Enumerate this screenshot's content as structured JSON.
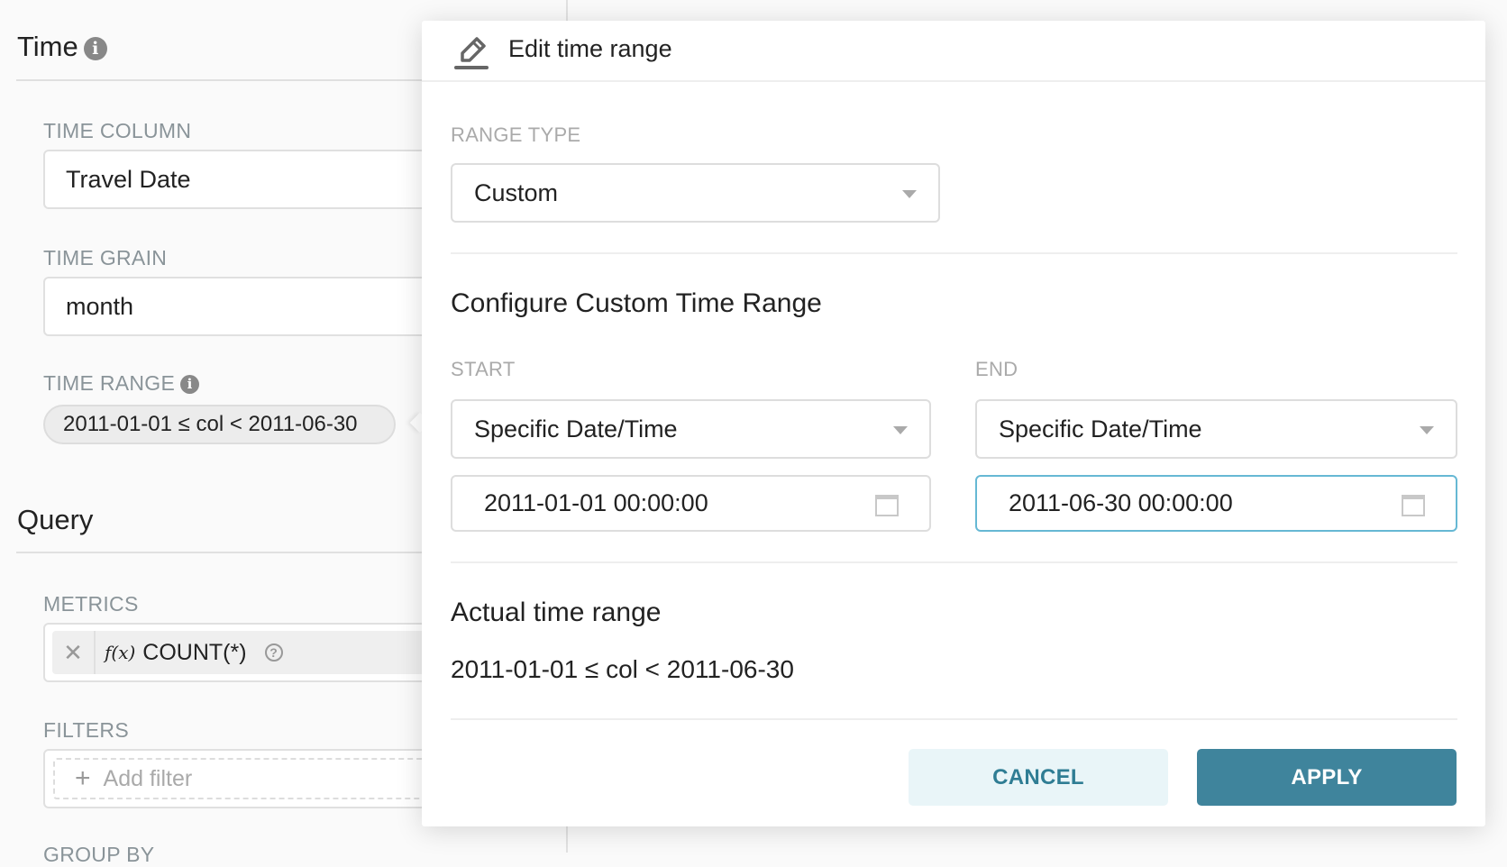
{
  "left": {
    "time_title": "Time",
    "time_column_label": "TIME COLUMN",
    "time_column_value": "Travel Date",
    "time_grain_label": "TIME GRAIN",
    "time_grain_value": "month",
    "time_range_label": "TIME RANGE",
    "time_range_value": "2011-01-01 ≤ col < 2011-06-30",
    "query_title": "Query",
    "metrics_label": "METRICS",
    "metric_fx": "f(x)",
    "metric_value": "COUNT(*)",
    "filters_label": "FILTERS",
    "add_filter": "Add filter",
    "group_by_label": "GROUP BY"
  },
  "modal": {
    "title": "Edit time range",
    "range_type_label": "RANGE TYPE",
    "range_type_value": "Custom",
    "configure_title": "Configure Custom Time Range",
    "start_label": "START",
    "end_label": "END",
    "start_mode": "Specific Date/Time",
    "end_mode": "Specific Date/Time",
    "start_value": "2011-01-01 00:00:00",
    "end_value": "2011-06-30 00:00:00",
    "actual_title": "Actual time range",
    "actual_value": "2011-01-01 ≤ col < 2011-06-30",
    "cancel": "CANCEL",
    "apply": "APPLY"
  },
  "colors": {
    "primary": "#3f849c",
    "cancel_bg": "#e9f5f8",
    "focus_border": "#66b8d4"
  }
}
